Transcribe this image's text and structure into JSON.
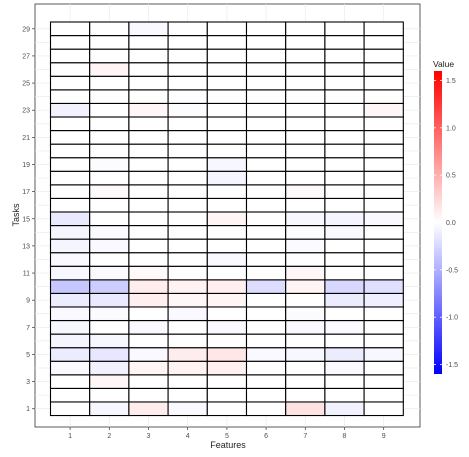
{
  "chart_data": {
    "type": "heatmap",
    "title": "",
    "xlabel": "Features",
    "ylabel": "Tasks",
    "x": [
      1,
      2,
      3,
      4,
      5,
      6,
      7,
      8,
      9
    ],
    "y": [
      1,
      2,
      3,
      4,
      5,
      6,
      7,
      8,
      9,
      10,
      11,
      12,
      13,
      14,
      15,
      16,
      17,
      18,
      19,
      20,
      21,
      22,
      23,
      24,
      25,
      26,
      27,
      28,
      29
    ],
    "xticks": [
      "1",
      "2",
      "3",
      "4",
      "5",
      "6",
      "7",
      "8",
      "9"
    ],
    "yticks": [
      "1",
      "3",
      "5",
      "7",
      "9",
      "11",
      "13",
      "15",
      "17",
      "19",
      "21",
      "23",
      "25",
      "27",
      "29"
    ],
    "values": [
      [
        0.0,
        -0.05,
        0.12,
        -0.04,
        0.0,
        0.0,
        0.18,
        -0.08,
        0.0
      ],
      [
        0.0,
        0.0,
        0.0,
        0.0,
        0.0,
        0.0,
        0.0,
        0.0,
        0.0
      ],
      [
        0.0,
        0.05,
        0.0,
        0.0,
        0.0,
        0.0,
        0.0,
        0.0,
        0.0
      ],
      [
        -0.04,
        -0.08,
        0.06,
        0.08,
        0.1,
        0.0,
        0.0,
        -0.04,
        0.0
      ],
      [
        -0.12,
        -0.15,
        -0.04,
        0.12,
        0.15,
        -0.04,
        -0.05,
        -0.12,
        -0.05
      ],
      [
        -0.06,
        -0.05,
        0.0,
        0.0,
        0.0,
        0.0,
        0.0,
        0.0,
        0.0
      ],
      [
        -0.05,
        0.0,
        -0.04,
        0.0,
        -0.04,
        0.0,
        -0.04,
        -0.03,
        0.0
      ],
      [
        -0.04,
        -0.03,
        0.0,
        -0.04,
        0.0,
        0.0,
        -0.02,
        0.0,
        0.0
      ],
      [
        -0.12,
        -0.14,
        0.1,
        0.05,
        0.06,
        0.0,
        0.0,
        -0.12,
        -0.1
      ],
      [
        -0.35,
        -0.32,
        0.12,
        0.08,
        0.1,
        -0.22,
        0.06,
        -0.25,
        -0.2
      ],
      [
        -0.05,
        -0.03,
        0.04,
        0.0,
        0.0,
        0.0,
        0.05,
        0.0,
        0.0
      ],
      [
        -0.04,
        0.0,
        0.0,
        0.0,
        -0.04,
        0.0,
        0.0,
        0.0,
        0.0
      ],
      [
        -0.06,
        -0.04,
        0.0,
        0.0,
        0.0,
        0.0,
        -0.03,
        0.0,
        0.0
      ],
      [
        -0.06,
        -0.03,
        0.0,
        0.0,
        0.0,
        0.0,
        -0.02,
        -0.04,
        0.0
      ],
      [
        -0.14,
        0.0,
        0.0,
        0.0,
        0.06,
        0.0,
        -0.05,
        -0.06,
        -0.04
      ],
      [
        0.0,
        0.0,
        0.0,
        0.0,
        0.0,
        0.0,
        0.0,
        0.0,
        0.0
      ],
      [
        0.0,
        0.04,
        0.0,
        0.0,
        0.0,
        0.0,
        0.04,
        0.0,
        0.0
      ],
      [
        0.0,
        0.0,
        0.0,
        0.0,
        -0.06,
        0.0,
        0.0,
        0.0,
        0.0
      ],
      [
        0.0,
        -0.02,
        0.0,
        0.0,
        -0.05,
        0.0,
        0.0,
        0.0,
        0.0
      ],
      [
        0.0,
        0.0,
        0.0,
        0.0,
        0.0,
        0.0,
        0.0,
        0.0,
        0.0
      ],
      [
        0.0,
        0.0,
        0.0,
        0.0,
        0.0,
        0.0,
        0.0,
        0.0,
        0.0
      ],
      [
        0.0,
        0.0,
        0.0,
        0.0,
        0.0,
        0.0,
        0.0,
        0.0,
        0.0
      ],
      [
        -0.08,
        0.0,
        0.05,
        -0.02,
        0.0,
        0.0,
        0.0,
        0.0,
        0.05
      ],
      [
        0.0,
        0.0,
        0.0,
        0.0,
        0.0,
        0.0,
        0.0,
        0.0,
        0.0
      ],
      [
        0.0,
        0.0,
        0.0,
        0.0,
        0.0,
        0.0,
        0.0,
        0.0,
        0.0
      ],
      [
        0.0,
        0.06,
        0.0,
        0.0,
        0.0,
        0.0,
        0.0,
        0.0,
        0.0
      ],
      [
        0.0,
        0.0,
        0.0,
        0.0,
        0.0,
        0.0,
        0.0,
        0.0,
        0.0
      ],
      [
        0.0,
        0.0,
        0.0,
        0.0,
        0.0,
        0.0,
        0.0,
        0.0,
        0.0
      ],
      [
        0.0,
        0.0,
        -0.04,
        0.0,
        0.0,
        0.0,
        0.0,
        0.0,
        0.0
      ]
    ],
    "color_scale": {
      "title": "Value",
      "min": -1.6,
      "max": 1.6,
      "low_color": "#0000ff",
      "mid_color": "#ffffff",
      "high_color": "#ff0000",
      "ticks": [
        -1.5,
        -1.0,
        -0.5,
        0.0,
        0.5,
        1.0,
        1.5
      ],
      "tick_labels": [
        "-1.5",
        "-1.0",
        "-0.5",
        "0.0",
        "0.5",
        "1.0",
        "1.5"
      ]
    },
    "grid": true,
    "legend": "right"
  }
}
